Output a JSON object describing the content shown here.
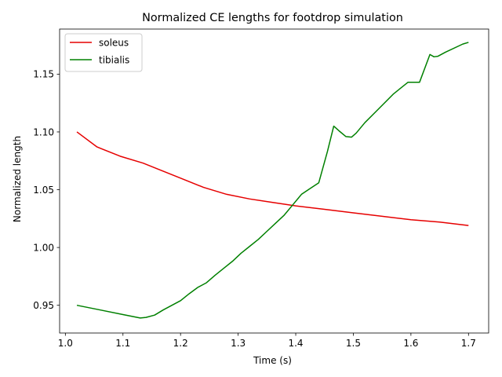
{
  "chart_data": {
    "type": "line",
    "title": "Normalized CE lengths for footdrop simulation",
    "xlabel": "Time (s)",
    "ylabel": "Normalized length",
    "xlim": [
      0.99,
      1.735
    ],
    "ylim": [
      0.926,
      1.189
    ],
    "xticks": [
      1.0,
      1.1,
      1.2,
      1.3,
      1.4,
      1.5,
      1.6,
      1.7
    ],
    "xtick_labels": [
      "1.0",
      "1.1",
      "1.2",
      "1.3",
      "1.4",
      "1.5",
      "1.6",
      "1.7"
    ],
    "yticks": [
      0.95,
      1.0,
      1.05,
      1.1,
      1.15
    ],
    "ytick_labels": [
      "0.95",
      "1.00",
      "1.05",
      "1.10",
      "1.15"
    ],
    "grid": false,
    "legend_position": "upper-left",
    "series": [
      {
        "name": "soleus",
        "color": "#e60000",
        "points": [
          [
            1.02,
            1.1
          ],
          [
            1.055,
            1.087
          ],
          [
            1.095,
            1.079
          ],
          [
            1.135,
            1.073
          ],
          [
            1.16,
            1.068
          ],
          [
            1.2,
            1.06
          ],
          [
            1.24,
            1.052
          ],
          [
            1.28,
            1.046
          ],
          [
            1.32,
            1.042
          ],
          [
            1.36,
            1.039
          ],
          [
            1.4,
            1.036
          ],
          [
            1.45,
            1.033
          ],
          [
            1.5,
            1.03
          ],
          [
            1.55,
            1.027
          ],
          [
            1.6,
            1.024
          ],
          [
            1.65,
            1.022
          ],
          [
            1.7,
            1.019
          ]
        ]
      },
      {
        "name": "tibialis",
        "color": "#008000",
        "points": [
          [
            1.02,
            0.95
          ],
          [
            1.06,
            0.946
          ],
          [
            1.1,
            0.942
          ],
          [
            1.13,
            0.939
          ],
          [
            1.14,
            0.9395
          ],
          [
            1.155,
            0.9415
          ],
          [
            1.17,
            0.946
          ],
          [
            1.185,
            0.95
          ],
          [
            1.2,
            0.954
          ],
          [
            1.215,
            0.96
          ],
          [
            1.23,
            0.9655
          ],
          [
            1.245,
            0.9695
          ],
          [
            1.26,
            0.976
          ],
          [
            1.275,
            0.982
          ],
          [
            1.29,
            0.988
          ],
          [
            1.305,
            0.995
          ],
          [
            1.32,
            1.001
          ],
          [
            1.335,
            1.007
          ],
          [
            1.35,
            1.014
          ],
          [
            1.365,
            1.021
          ],
          [
            1.38,
            1.028
          ],
          [
            1.395,
            1.037
          ],
          [
            1.41,
            1.046
          ],
          [
            1.425,
            1.051
          ],
          [
            1.44,
            1.056
          ],
          [
            1.455,
            1.083
          ],
          [
            1.466,
            1.105
          ],
          [
            1.475,
            1.101
          ],
          [
            1.487,
            1.096
          ],
          [
            1.497,
            1.0955
          ],
          [
            1.505,
            1.099
          ],
          [
            1.52,
            1.108
          ],
          [
            1.54,
            1.118
          ],
          [
            1.57,
            1.133
          ],
          [
            1.595,
            1.143
          ],
          [
            1.615,
            1.143
          ],
          [
            1.633,
            1.167
          ],
          [
            1.64,
            1.165
          ],
          [
            1.647,
            1.1655
          ],
          [
            1.66,
            1.169
          ],
          [
            1.69,
            1.176
          ],
          [
            1.7,
            1.1775
          ]
        ]
      }
    ]
  }
}
